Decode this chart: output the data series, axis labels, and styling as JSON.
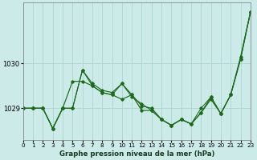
{
  "title": "Graphe pression niveau de la mer (hPa)",
  "bg_color": "#cceae8",
  "grid_color": "#aad4d2",
  "line_color": "#1a6b1a",
  "x_ticks": [
    0,
    1,
    2,
    3,
    4,
    5,
    6,
    7,
    8,
    9,
    10,
    11,
    12,
    13,
    14,
    15,
    16,
    17,
    18,
    19,
    20,
    21,
    22,
    23
  ],
  "xlim": [
    0,
    23
  ],
  "ylim": [
    1028.3,
    1031.35
  ],
  "yticks": [
    1029,
    1030
  ],
  "s1y": [
    1029.0,
    1029.0,
    1029.0,
    1028.55,
    1029.0,
    1029.0,
    1029.85,
    1029.55,
    1029.4,
    1029.35,
    1029.55,
    1029.3,
    1029.05,
    1029.0,
    1028.75,
    1028.62,
    1028.75,
    1028.65,
    1028.9,
    1029.25,
    1028.88,
    1029.3,
    1030.1,
    1031.15
  ],
  "s2y": [
    1029.0,
    1029.0,
    1029.0,
    1028.55,
    1029.0,
    1029.6,
    1029.6,
    1029.5,
    1029.35,
    1029.3,
    1029.2,
    1029.3,
    1028.95,
    1028.95,
    1028.75,
    1028.62,
    1028.75,
    1028.65,
    1028.9,
    1029.2,
    1028.88,
    1029.3,
    1030.15,
    1031.15
  ],
  "s3y": [
    1029.0,
    1029.0,
    1029.0,
    1028.55,
    1029.0,
    1029.0,
    1029.85,
    1029.5,
    1029.35,
    1029.3,
    1029.55,
    1029.25,
    1029.1,
    1028.95,
    1028.75,
    1028.62,
    1028.75,
    1028.65,
    1029.0,
    1029.25,
    1028.88,
    1029.3,
    1030.1,
    1031.15
  ]
}
